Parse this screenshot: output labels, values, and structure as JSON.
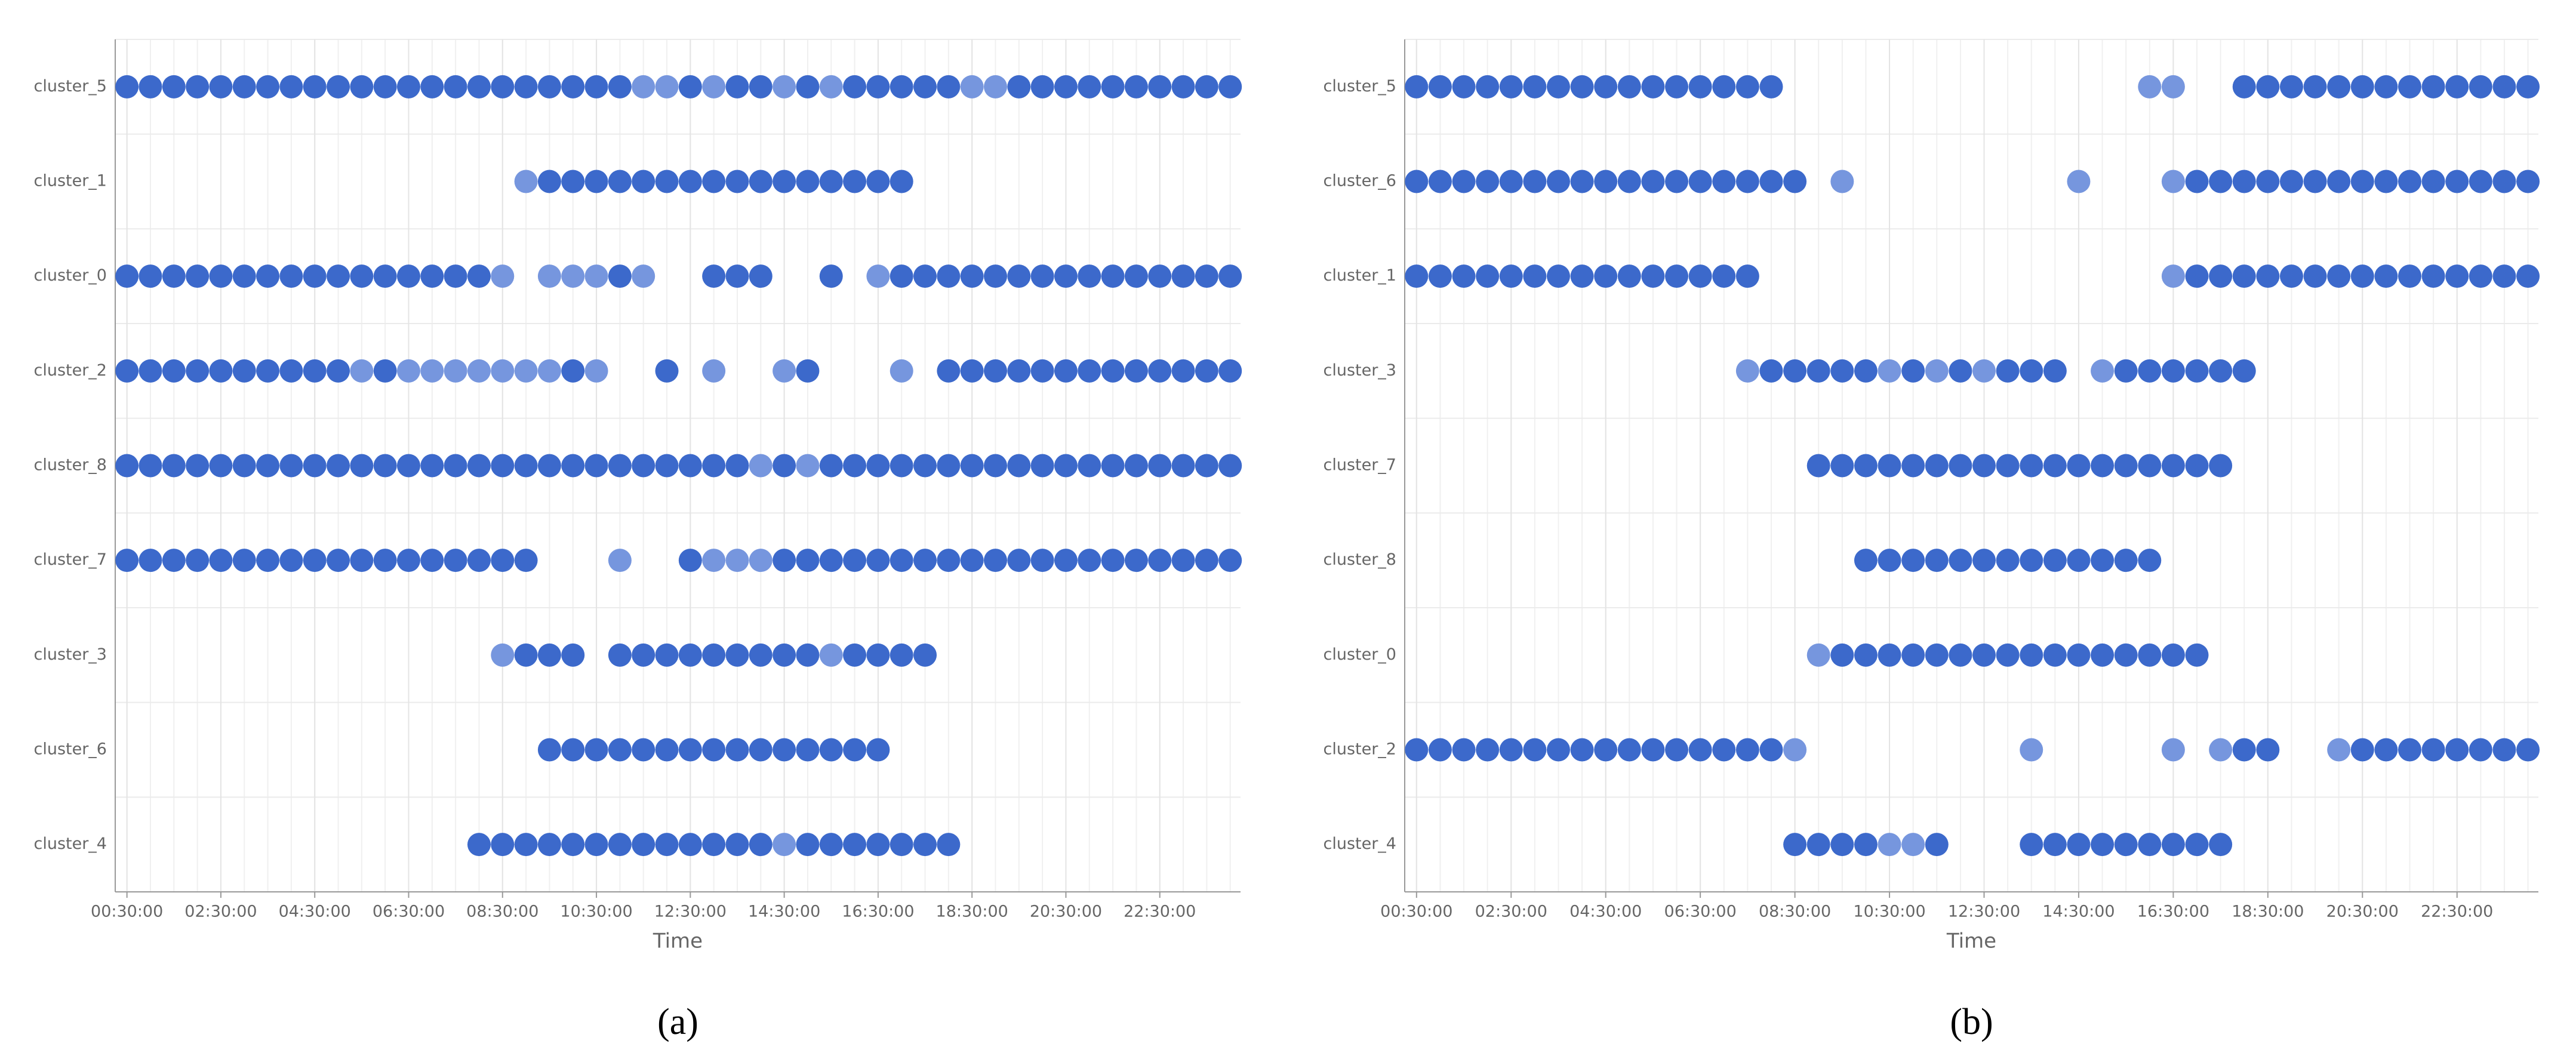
{
  "chart_data": [
    {
      "type": "strip",
      "panel_label": "(a)",
      "x_label": "Time",
      "colors": {
        "1": "#7696de",
        "2": "#3c69cb"
      },
      "xlim": [
        0.25,
        24.22
      ],
      "xticks": [
        {
          "value": 0.5,
          "label": "00:30:00"
        },
        {
          "value": 2.5,
          "label": "02:30:00"
        },
        {
          "value": 4.5,
          "label": "04:30:00"
        },
        {
          "value": 6.5,
          "label": "06:30:00"
        },
        {
          "value": 8.5,
          "label": "08:30:00"
        },
        {
          "value": 10.5,
          "label": "10:30:00"
        },
        {
          "value": 12.5,
          "label": "12:30:00"
        },
        {
          "value": 14.5,
          "label": "14:30:00"
        },
        {
          "value": 16.5,
          "label": "16:30:00"
        },
        {
          "value": 18.5,
          "label": "18:30:00"
        },
        {
          "value": 20.5,
          "label": "20:30:00"
        },
        {
          "value": 22.5,
          "label": "22:30:00"
        }
      ],
      "x": [
        0.5,
        1,
        1.5,
        2,
        2.5,
        3,
        3.5,
        4,
        4.5,
        5,
        5.5,
        6,
        6.5,
        7,
        7.5,
        8,
        8.5,
        9,
        9.5,
        10,
        10.5,
        11,
        11.5,
        12,
        12.5,
        13,
        13.5,
        14,
        14.5,
        15,
        15.5,
        16,
        16.5,
        17,
        17.5,
        18,
        18.5,
        19,
        19.5,
        20,
        20.5,
        21,
        21.5,
        22,
        22.5,
        23,
        23.5,
        24
      ],
      "series": [
        {
          "name": "cluster_5",
          "values": [
            2,
            2,
            2,
            2,
            2,
            2,
            2,
            2,
            2,
            2,
            2,
            2,
            2,
            2,
            2,
            2,
            2,
            2,
            2,
            2,
            2,
            2,
            1,
            1,
            2,
            1,
            2,
            2,
            1,
            2,
            1,
            2,
            2,
            2,
            2,
            2,
            1,
            1,
            2,
            2,
            2,
            2,
            2,
            2,
            2,
            2,
            2,
            2
          ]
        },
        {
          "name": "cluster_1",
          "values": [
            null,
            null,
            null,
            null,
            null,
            null,
            null,
            null,
            null,
            null,
            null,
            null,
            null,
            null,
            null,
            null,
            null,
            1,
            2,
            2,
            2,
            2,
            2,
            2,
            2,
            2,
            2,
            2,
            2,
            2,
            2,
            2,
            2,
            2,
            null,
            null,
            null,
            null,
            null,
            null,
            null,
            null,
            null,
            null,
            null,
            null,
            null,
            null
          ]
        },
        {
          "name": "cluster_0",
          "values": [
            2,
            2,
            2,
            2,
            2,
            2,
            2,
            2,
            2,
            2,
            2,
            2,
            2,
            2,
            2,
            2,
            1,
            null,
            1,
            1,
            1,
            2,
            1,
            null,
            null,
            2,
            2,
            2,
            null,
            null,
            2,
            null,
            1,
            2,
            2,
            2,
            2,
            2,
            2,
            2,
            2,
            2,
            2,
            2,
            2,
            2,
            2,
            2
          ]
        },
        {
          "name": "cluster_2",
          "values": [
            2,
            2,
            2,
            2,
            2,
            2,
            2,
            2,
            2,
            2,
            1,
            2,
            1,
            1,
            1,
            1,
            1,
            1,
            1,
            2,
            1,
            null,
            null,
            2,
            null,
            1,
            null,
            null,
            1,
            2,
            null,
            null,
            null,
            1,
            null,
            2,
            2,
            2,
            2,
            2,
            2,
            2,
            2,
            2,
            2,
            2,
            2,
            2
          ]
        },
        {
          "name": "cluster_8",
          "values": [
            2,
            2,
            2,
            2,
            2,
            2,
            2,
            2,
            2,
            2,
            2,
            2,
            2,
            2,
            2,
            2,
            2,
            2,
            2,
            2,
            2,
            2,
            2,
            2,
            2,
            2,
            2,
            1,
            2,
            1,
            2,
            2,
            2,
            2,
            2,
            2,
            2,
            2,
            2,
            2,
            2,
            2,
            2,
            2,
            2,
            2,
            2,
            2
          ]
        },
        {
          "name": "cluster_7",
          "values": [
            2,
            2,
            2,
            2,
            2,
            2,
            2,
            2,
            2,
            2,
            2,
            2,
            2,
            2,
            2,
            2,
            2,
            2,
            null,
            null,
            null,
            1,
            null,
            null,
            2,
            1,
            1,
            1,
            2,
            2,
            2,
            2,
            2,
            2,
            2,
            2,
            2,
            2,
            2,
            2,
            2,
            2,
            2,
            2,
            2,
            2,
            2,
            2
          ]
        },
        {
          "name": "cluster_3",
          "values": [
            null,
            null,
            null,
            null,
            null,
            null,
            null,
            null,
            null,
            null,
            null,
            null,
            null,
            null,
            null,
            null,
            1,
            2,
            2,
            2,
            null,
            2,
            2,
            2,
            2,
            2,
            2,
            2,
            2,
            2,
            1,
            2,
            2,
            2,
            2,
            null,
            null,
            null,
            null,
            null,
            null,
            null,
            null,
            null,
            null,
            null,
            null,
            null
          ]
        },
        {
          "name": "cluster_6",
          "values": [
            null,
            null,
            null,
            null,
            null,
            null,
            null,
            null,
            null,
            null,
            null,
            null,
            null,
            null,
            null,
            null,
            null,
            null,
            2,
            2,
            2,
            2,
            2,
            2,
            2,
            2,
            2,
            2,
            2,
            2,
            2,
            2,
            2,
            null,
            null,
            null,
            null,
            null,
            null,
            null,
            null,
            null,
            null,
            null,
            null,
            null,
            null,
            null
          ]
        },
        {
          "name": "cluster_4",
          "values": [
            null,
            null,
            null,
            null,
            null,
            null,
            null,
            null,
            null,
            null,
            null,
            null,
            null,
            null,
            null,
            2,
            2,
            2,
            2,
            2,
            2,
            2,
            2,
            2,
            2,
            2,
            2,
            2,
            1,
            2,
            2,
            2,
            2,
            2,
            2,
            2,
            null,
            null,
            null,
            null,
            null,
            null,
            null,
            null,
            null,
            null,
            null,
            null
          ]
        }
      ]
    },
    {
      "type": "strip",
      "panel_label": "(b)",
      "x_label": "Time",
      "colors": {
        "1": "#7696de",
        "2": "#3c69cb"
      },
      "xlim": [
        0.25,
        24.22
      ],
      "xticks": [
        {
          "value": 0.5,
          "label": "00:30:00"
        },
        {
          "value": 2.5,
          "label": "02:30:00"
        },
        {
          "value": 4.5,
          "label": "04:30:00"
        },
        {
          "value": 6.5,
          "label": "06:30:00"
        },
        {
          "value": 8.5,
          "label": "08:30:00"
        },
        {
          "value": 10.5,
          "label": "10:30:00"
        },
        {
          "value": 12.5,
          "label": "12:30:00"
        },
        {
          "value": 14.5,
          "label": "14:30:00"
        },
        {
          "value": 16.5,
          "label": "16:30:00"
        },
        {
          "value": 18.5,
          "label": "18:30:00"
        },
        {
          "value": 20.5,
          "label": "20:30:00"
        },
        {
          "value": 22.5,
          "label": "22:30:00"
        }
      ],
      "x": [
        0.5,
        1,
        1.5,
        2,
        2.5,
        3,
        3.5,
        4,
        4.5,
        5,
        5.5,
        6,
        6.5,
        7,
        7.5,
        8,
        8.5,
        9,
        9.5,
        10,
        10.5,
        11,
        11.5,
        12,
        12.5,
        13,
        13.5,
        14,
        14.5,
        15,
        15.5,
        16,
        16.5,
        17,
        17.5,
        18,
        18.5,
        19,
        19.5,
        20,
        20.5,
        21,
        21.5,
        22,
        22.5,
        23,
        23.5,
        24
      ],
      "series": [
        {
          "name": "cluster_5",
          "values": [
            2,
            2,
            2,
            2,
            2,
            2,
            2,
            2,
            2,
            2,
            2,
            2,
            2,
            2,
            2,
            2,
            null,
            null,
            null,
            null,
            null,
            null,
            null,
            null,
            null,
            null,
            null,
            null,
            null,
            null,
            null,
            1,
            1,
            null,
            null,
            2,
            2,
            2,
            2,
            2,
            2,
            2,
            2,
            2,
            2,
            2,
            2,
            2
          ]
        },
        {
          "name": "cluster_6",
          "values": [
            2,
            2,
            2,
            2,
            2,
            2,
            2,
            2,
            2,
            2,
            2,
            2,
            2,
            2,
            2,
            2,
            2,
            null,
            1,
            null,
            null,
            null,
            null,
            null,
            null,
            null,
            null,
            null,
            1,
            null,
            null,
            null,
            1,
            2,
            2,
            2,
            2,
            2,
            2,
            2,
            2,
            2,
            2,
            2,
            2,
            2,
            2,
            2
          ]
        },
        {
          "name": "cluster_1",
          "values": [
            2,
            2,
            2,
            2,
            2,
            2,
            2,
            2,
            2,
            2,
            2,
            2,
            2,
            2,
            2,
            null,
            null,
            null,
            null,
            null,
            null,
            null,
            null,
            null,
            null,
            null,
            null,
            null,
            null,
            null,
            null,
            null,
            1,
            2,
            2,
            2,
            2,
            2,
            2,
            2,
            2,
            2,
            2,
            2,
            2,
            2,
            2,
            2
          ]
        },
        {
          "name": "cluster_3",
          "values": [
            null,
            null,
            null,
            null,
            null,
            null,
            null,
            null,
            null,
            null,
            null,
            null,
            null,
            null,
            1,
            2,
            2,
            2,
            2,
            2,
            1,
            2,
            1,
            2,
            1,
            2,
            2,
            2,
            null,
            1,
            2,
            2,
            2,
            2,
            2,
            2,
            null,
            null,
            null,
            null,
            null,
            null,
            null,
            null,
            null,
            null,
            null,
            null
          ]
        },
        {
          "name": "cluster_7",
          "values": [
            null,
            null,
            null,
            null,
            null,
            null,
            null,
            null,
            null,
            null,
            null,
            null,
            null,
            null,
            null,
            null,
            null,
            2,
            2,
            2,
            2,
            2,
            2,
            2,
            2,
            2,
            2,
            2,
            2,
            2,
            2,
            2,
            2,
            2,
            2,
            null,
            null,
            null,
            null,
            null,
            null,
            null,
            null,
            null,
            null,
            null,
            null,
            null
          ]
        },
        {
          "name": "cluster_8",
          "values": [
            null,
            null,
            null,
            null,
            null,
            null,
            null,
            null,
            null,
            null,
            null,
            null,
            null,
            null,
            null,
            null,
            null,
            null,
            null,
            2,
            2,
            2,
            2,
            2,
            2,
            2,
            2,
            2,
            2,
            2,
            2,
            2,
            null,
            null,
            null,
            null,
            null,
            null,
            null,
            null,
            null,
            null,
            null,
            null,
            null,
            null,
            null,
            null
          ]
        },
        {
          "name": "cluster_0",
          "values": [
            null,
            null,
            null,
            null,
            null,
            null,
            null,
            null,
            null,
            null,
            null,
            null,
            null,
            null,
            null,
            null,
            null,
            1,
            2,
            2,
            2,
            2,
            2,
            2,
            2,
            2,
            2,
            2,
            2,
            2,
            2,
            2,
            2,
            2,
            null,
            null,
            null,
            null,
            null,
            null,
            null,
            null,
            null,
            null,
            null,
            null,
            null,
            null
          ]
        },
        {
          "name": "cluster_2",
          "values": [
            2,
            2,
            2,
            2,
            2,
            2,
            2,
            2,
            2,
            2,
            2,
            2,
            2,
            2,
            2,
            2,
            1,
            null,
            null,
            null,
            null,
            null,
            null,
            null,
            null,
            null,
            1,
            null,
            null,
            null,
            null,
            null,
            1,
            null,
            1,
            2,
            2,
            null,
            null,
            1,
            2,
            2,
            2,
            2,
            2,
            2,
            2,
            2
          ]
        },
        {
          "name": "cluster_4",
          "values": [
            null,
            null,
            null,
            null,
            null,
            null,
            null,
            null,
            null,
            null,
            null,
            null,
            null,
            null,
            null,
            null,
            2,
            2,
            2,
            2,
            1,
            1,
            2,
            null,
            null,
            null,
            2,
            2,
            2,
            2,
            2,
            2,
            2,
            2,
            2,
            null,
            null,
            null,
            null,
            null,
            null,
            null,
            null,
            null,
            null,
            null,
            null,
            null
          ]
        }
      ]
    }
  ]
}
